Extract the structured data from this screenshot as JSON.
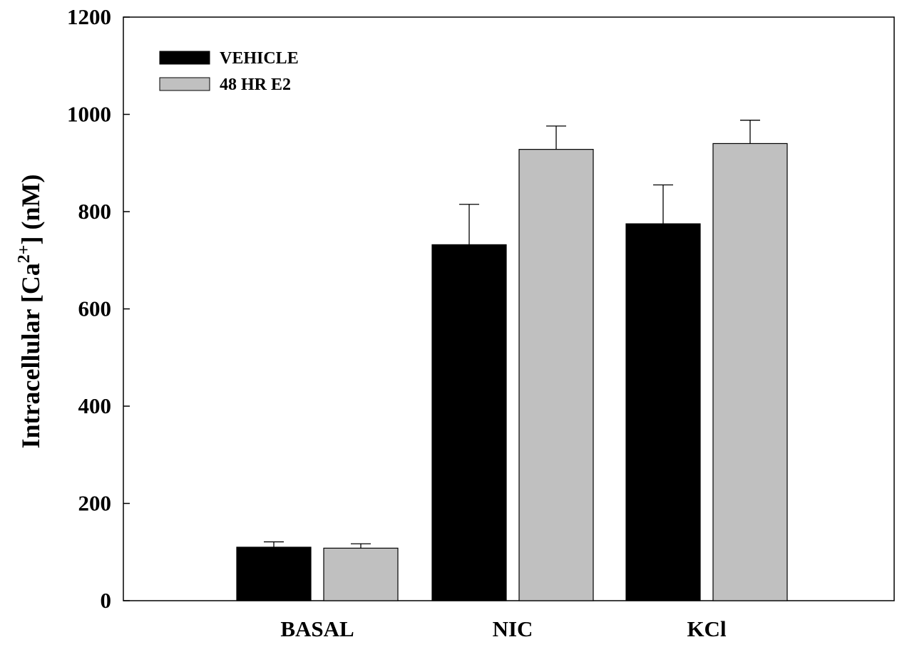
{
  "chart_data": {
    "type": "bar",
    "categories": [
      "BASAL",
      "NIC",
      "KCl"
    ],
    "series": [
      {
        "name": "VEHICLE",
        "color": "#000000",
        "values": [
          110,
          732,
          775
        ],
        "errors": [
          11,
          83,
          80
        ]
      },
      {
        "name": "48 HR E2",
        "color": "#c0c0c0",
        "values": [
          108,
          928,
          940
        ],
        "errors": [
          9,
          48,
          48
        ]
      }
    ],
    "ylabel": {
      "main": "Intracellular [Ca",
      "superscript": "2+",
      "suffix": "] (nM)"
    },
    "xlabel": "",
    "ylim": [
      0,
      1200
    ],
    "yticks": [
      0,
      200,
      400,
      600,
      800,
      1000,
      1200
    ],
    "grid": false,
    "legend_position": "top-left"
  }
}
